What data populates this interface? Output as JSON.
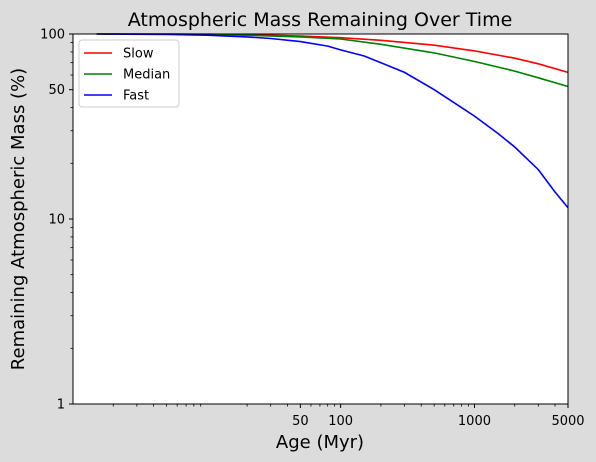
{
  "chart_data": {
    "type": "line",
    "title": "Atmospheric Mass Remaining Over Time",
    "xlabel": "Age (Myr)",
    "ylabel": "Remaining Atmospheric Mass (%)",
    "xscale": "log",
    "yscale": "log",
    "xlim": [
      1,
      5000
    ],
    "ylim": [
      1,
      100
    ],
    "xticks": [
      {
        "value": 50,
        "label": "50"
      },
      {
        "value": 100,
        "label": "100"
      },
      {
        "value": 1000,
        "label": "1000"
      },
      {
        "value": 5000,
        "label": "5000"
      }
    ],
    "yticks": [
      {
        "value": 1,
        "label": "1"
      },
      {
        "value": 10,
        "label": "10"
      },
      {
        "value": 50,
        "label": "50"
      },
      {
        "value": 100,
        "label": "100"
      }
    ],
    "grid": false,
    "legend_position": "upper-left",
    "series": [
      {
        "name": "Slow",
        "color": "#ff0000",
        "x": [
          1.5,
          5,
          10,
          20,
          50,
          100,
          200,
          500,
          1000,
          2000,
          3000,
          5000
        ],
        "y": [
          100,
          100,
          99.8,
          99.2,
          97.5,
          95.5,
          92.5,
          87,
          81,
          74,
          69,
          62
        ]
      },
      {
        "name": "Median",
        "color": "#008000",
        "x": [
          1.5,
          5,
          10,
          20,
          50,
          100,
          200,
          500,
          1000,
          2000,
          3000,
          5000
        ],
        "y": [
          100,
          100,
          99.5,
          98.5,
          96.5,
          94,
          88,
          79,
          71,
          63,
          58,
          52
        ]
      },
      {
        "name": "Fast",
        "color": "#0000ff",
        "x": [
          1.5,
          5,
          10,
          20,
          30,
          50,
          80,
          100,
          150,
          200,
          300,
          500,
          800,
          1000,
          1500,
          2000,
          3000,
          4000,
          5000
        ],
        "y": [
          100,
          99.5,
          98.5,
          96.5,
          94.5,
          91,
          86,
          82,
          76,
          70,
          62,
          50,
          40,
          36,
          29,
          24.5,
          18.5,
          14,
          11.5
        ]
      }
    ]
  }
}
